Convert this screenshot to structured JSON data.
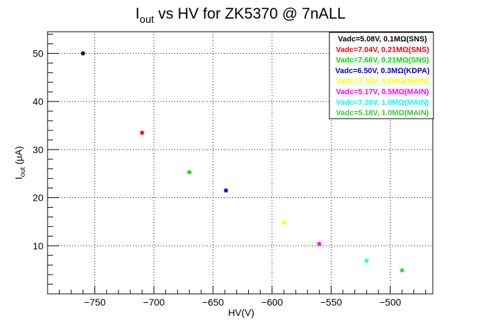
{
  "chart_data": {
    "type": "scatter",
    "title": {
      "main": "I",
      "sub": "out",
      "rest": " vs HV for ZK5370 @ 7nALL"
    },
    "xlabel": "HV(V)",
    "ylabel": {
      "main": "I",
      "sub": "out",
      "rest": " (μA)"
    },
    "xlim": [
      -790,
      -464
    ],
    "ylim": [
      0,
      54.5
    ],
    "grid": true,
    "legend_position": "top-right",
    "x_ticks": [
      -750,
      -700,
      -650,
      -600,
      -550,
      -500
    ],
    "x_tick_labels": [
      "−750",
      "−700",
      "−650",
      "−600",
      "−550",
      "−500"
    ],
    "y_ticks": [
      10,
      20,
      30,
      40,
      50
    ],
    "y_tick_labels": [
      "10",
      "20",
      "30",
      "40",
      "50"
    ],
    "series": [
      {
        "name": "Vadc=5.08V, 0.1MΩ(SNS)",
        "color": "#000000",
        "x": [
          -760
        ],
        "y": [
          50.0
        ]
      },
      {
        "name": "Vadc=7.04V, 0.21MΩ(SNS)",
        "color": "#ff0000",
        "x": [
          -710
        ],
        "y": [
          33.5
        ]
      },
      {
        "name": "Vadc=7.66V, 0.21MΩ(SNS)",
        "color": "#00dd00",
        "x": [
          -670
        ],
        "y": [
          25.3
        ]
      },
      {
        "name": "Vadc=6.50V, 0.3MΩ(KDPA)",
        "color": "#0000cc",
        "x": [
          -639
        ],
        "y": [
          21.5
        ]
      },
      {
        "name": "Vadc=7.16V, 0.5MΩ(MAIN)",
        "color": "#ffff00",
        "x": [
          -590
        ],
        "y": [
          14.8
        ]
      },
      {
        "name": "Vadc=5.17V, 0.5MΩ(MAIN)",
        "color": "#ff00ff",
        "x": [
          -560
        ],
        "y": [
          10.4
        ]
      },
      {
        "name": "Vadc=7.26V, 1.0MΩ(MAIN)",
        "color": "#00ffff",
        "x": [
          -520
        ],
        "y": [
          6.9
        ]
      },
      {
        "name": "Vadc=5.18V, 1.0MΩ(MAIN)",
        "color": "#33cc33",
        "x": [
          -490
        ],
        "y": [
          4.9
        ]
      }
    ]
  }
}
